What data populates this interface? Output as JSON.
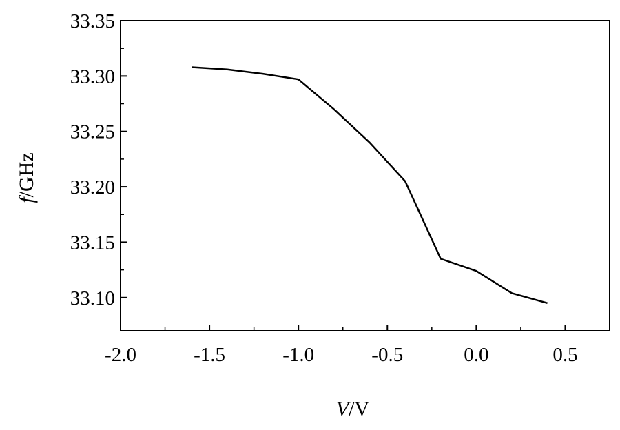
{
  "chart_data": {
    "type": "line",
    "title": "",
    "xlabel": {
      "var": "V",
      "unit": "V"
    },
    "ylabel": {
      "var": "f",
      "unit": "GHz"
    },
    "xlim": [
      -2.0,
      0.75
    ],
    "ylim": [
      33.07,
      33.35
    ],
    "x_ticks": [
      -2.0,
      -1.5,
      -1.0,
      -0.5,
      0.0,
      0.5
    ],
    "x_tick_labels": [
      "-2.0",
      "-1.5",
      "-1.0",
      "-0.5",
      "0.0",
      "0.5"
    ],
    "y_ticks": [
      33.1,
      33.15,
      33.2,
      33.25,
      33.3,
      33.35
    ],
    "y_tick_labels": [
      "33.10",
      "33.15",
      "33.20",
      "33.25",
      "33.30",
      "33.35"
    ],
    "grid": false,
    "series": [
      {
        "x": [
          -1.6,
          -1.4,
          -1.2,
          -1.0,
          -0.8,
          -0.6,
          -0.4,
          -0.2,
          0.0,
          0.2,
          0.4
        ],
        "y": [
          33.308,
          33.306,
          33.302,
          33.297,
          33.27,
          33.24,
          33.205,
          33.135,
          33.124,
          33.104,
          33.095
        ]
      }
    ]
  }
}
